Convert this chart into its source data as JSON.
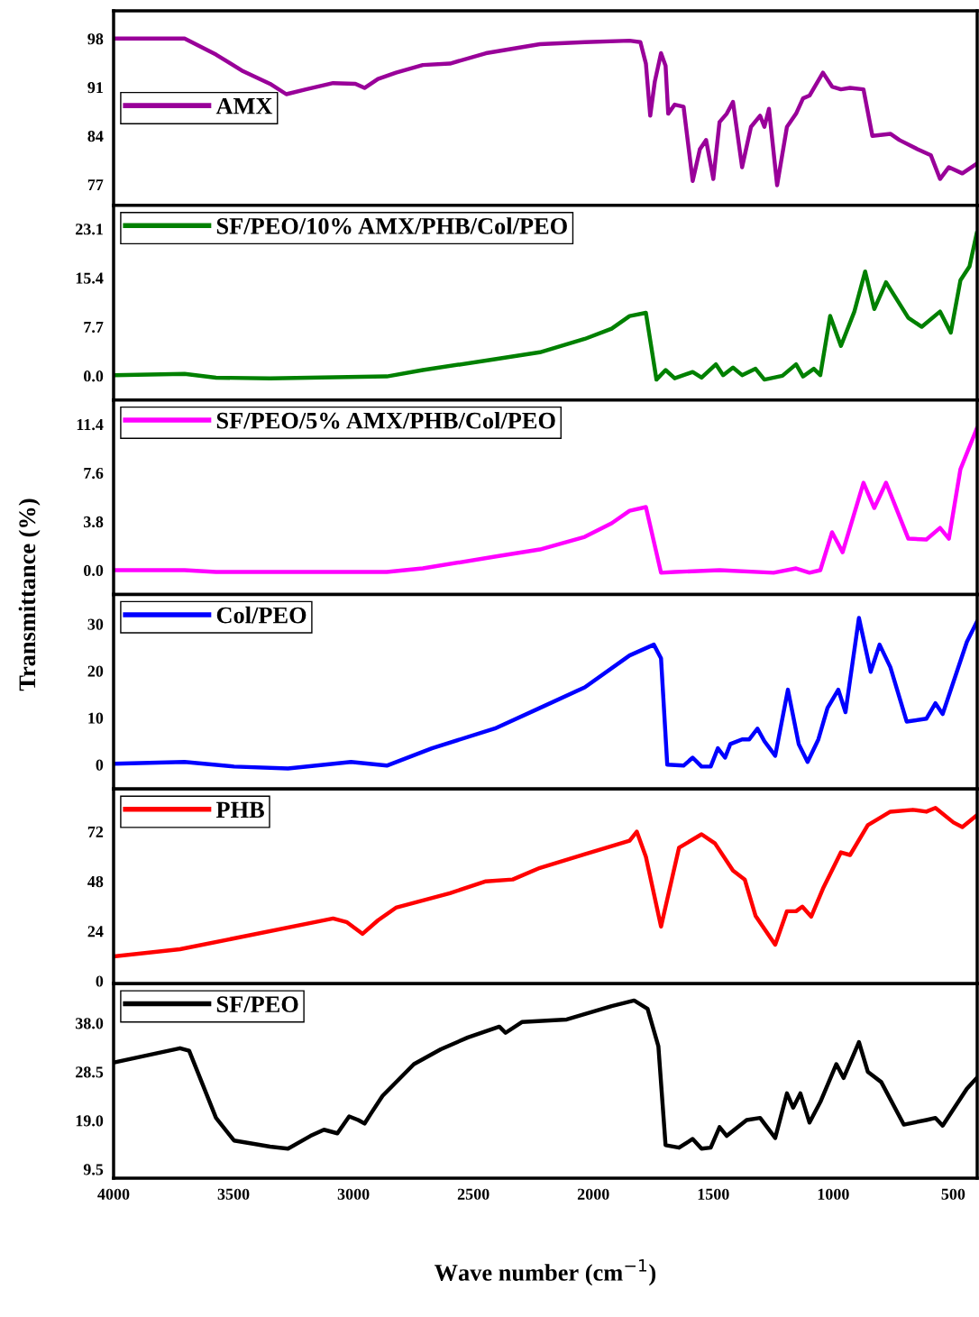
{
  "chart_data": [
    {
      "type": "line",
      "series": [
        {
          "name": "AMX",
          "color": "#990099",
          "x": [
            4000,
            3704,
            3573,
            3460,
            3348,
            3280,
            3198,
            3085,
            2992,
            2954,
            2898,
            2823,
            2711,
            2598,
            2448,
            2223,
            2036,
            1849,
            1804,
            1781,
            1763,
            1744,
            1718,
            1699,
            1688,
            1661,
            1624,
            1586,
            1556,
            1530,
            1500,
            1474,
            1444,
            1418,
            1380,
            1343,
            1305,
            1287,
            1268,
            1234,
            1193,
            1155,
            1126,
            1099,
            1043,
            1005,
            968,
            930,
            874,
            837,
            762,
            724,
            649,
            593,
            555,
            518,
            462,
            406
          ],
          "values": [
            98,
            98,
            95.7,
            93.3,
            91.5,
            90.0,
            90.7,
            91.6,
            91.5,
            90.9,
            92.2,
            93.1,
            94.2,
            94.4,
            95.9,
            97.2,
            97.5,
            97.7,
            97.5,
            94.4,
            86.9,
            91.8,
            95.9,
            94.1,
            87.2,
            88.5,
            88.2,
            77.5,
            82.1,
            83.4,
            77.8,
            86.0,
            87.2,
            88.9,
            79.5,
            85.3,
            86.9,
            85.3,
            87.9,
            76.9,
            85.3,
            87.2,
            89.4,
            89.8,
            93.1,
            91.1,
            90.7,
            90.9,
            90.7,
            84.0,
            84.3,
            83.4,
            82.1,
            81.2,
            77.8,
            79.5,
            78.6,
            79.9
          ]
        }
      ],
      "xlim": [
        4000,
        400
      ],
      "xticks": [
        4000,
        3500,
        3000,
        2500,
        2000,
        1500,
        1000,
        500
      ],
      "ylim": [
        74,
        102
      ],
      "yticks": [
        77,
        84,
        91,
        98
      ],
      "legend": "left",
      "tick_labels": "y",
      "grid": false
    },
    {
      "type": "line",
      "series": [
        {
          "name": "SF/PEO/10% AMX/PHB/Col/PEO",
          "color": "#008000",
          "x": [
            4000,
            3704,
            3573,
            3348,
            2861,
            2711,
            2411,
            2223,
            2036,
            1924,
            1849,
            1781,
            1737,
            1699,
            1661,
            1586,
            1549,
            1489,
            1459,
            1418,
            1380,
            1324,
            1287,
            1212,
            1155,
            1126,
            1081,
            1054,
            1013,
            968,
            912,
            867,
            829,
            780,
            687,
            631,
            555,
            510,
            470,
            432,
            402
          ],
          "values": [
            0.1,
            0.3,
            -0.3,
            -0.4,
            -0.1,
            0.9,
            2.6,
            3.7,
            5.8,
            7.4,
            9.4,
            9.9,
            -0.6,
            0.9,
            -0.4,
            0.6,
            -0.3,
            1.8,
            0.1,
            1.3,
            0.1,
            1.1,
            -0.6,
            0,
            1.8,
            -0.1,
            1.1,
            0.1,
            9.4,
            4.7,
            10.1,
            16.4,
            10.5,
            14.7,
            9.1,
            7.7,
            10.1,
            6.8,
            15.0,
            17.2,
            22.4
          ]
        }
      ],
      "xlim": [
        4000,
        400
      ],
      "xticks": [
        4000,
        3500,
        3000,
        2500,
        2000,
        1500,
        1000,
        500
      ],
      "ylim": [
        -3.8,
        26.8
      ],
      "yticks": [
        {
          "value": 0,
          "label": "0.0"
        },
        7.7,
        15.4,
        23.1
      ],
      "legend": "top left",
      "tick_labels": "y",
      "grid": false
    },
    {
      "type": "line",
      "ylabel": "Transmittance (%)",
      "series": [
        {
          "name": "SF/PEO/5% AMX/PHB/Col/PEO",
          "color": "#ff00ff",
          "x": [
            4000,
            3704,
            3573,
            2861,
            2711,
            2411,
            2223,
            2036,
            1924,
            1849,
            1781,
            1718,
            1661,
            1474,
            1249,
            1155,
            1099,
            1054,
            1005,
            961,
            874,
            829,
            780,
            687,
            612,
            555,
            518,
            470,
            402
          ],
          "values": [
            0,
            0,
            -0.14,
            -0.14,
            0.14,
            1.06,
            1.62,
            2.6,
            3.66,
            4.64,
            4.93,
            -0.2,
            -0.14,
            0,
            -0.2,
            0.14,
            -0.2,
            0,
            2.96,
            1.4,
            6.83,
            4.86,
            6.83,
            2.46,
            2.4,
            3.3,
            2.46,
            7.88,
            11.05
          ]
        }
      ],
      "xlim": [
        4000,
        400
      ],
      "xticks": [
        4000,
        3500,
        3000,
        2500,
        2000,
        1500,
        1000,
        500
      ],
      "ylim": [
        -1.9,
        13.3
      ],
      "yticks": [
        {
          "value": 0,
          "label": "0.0"
        },
        3.8,
        7.6,
        11.4
      ],
      "legend": "top left",
      "tick_labels": "y",
      "grid": false
    },
    {
      "type": "line",
      "series": [
        {
          "name": "Col/PEO",
          "color": "#0000ff",
          "x": [
            4000,
            3704,
            3498,
            3273,
            3010,
            2861,
            2673,
            2411,
            2223,
            2036,
            1849,
            1748,
            1718,
            1692,
            1624,
            1586,
            1549,
            1511,
            1481,
            1451,
            1429,
            1380,
            1350,
            1316,
            1287,
            1242,
            1189,
            1144,
            1107,
            1062,
            1024,
            979,
            949,
            893,
            844,
            807,
            762,
            694,
            612,
            574,
            544,
            443,
            402
          ],
          "values": [
            0.2,
            0.6,
            -0.4,
            -0.8,
            0.6,
            -0.2,
            3.5,
            7.7,
            12.1,
            16.5,
            23.3,
            25.6,
            22.7,
            0,
            -0.2,
            1.5,
            -0.4,
            -0.4,
            3.5,
            1.5,
            4.4,
            5.4,
            5.4,
            7.7,
            5.0,
            1.9,
            16.0,
            4.4,
            0.6,
            5.4,
            12.1,
            16.0,
            11.2,
            31.3,
            19.8,
            25.6,
            20.8,
            9.2,
            9.8,
            13.1,
            10.8,
            26.2,
            30.4
          ]
        }
      ],
      "xlim": [
        4000,
        400
      ],
      "xticks": [
        4000,
        3500,
        3000,
        2500,
        2000,
        1500,
        1000,
        500
      ],
      "ylim": [
        -5.2,
        36.3
      ],
      "yticks": [
        0,
        10,
        20,
        30
      ],
      "legend": "top left",
      "tick_labels": "y",
      "grid": false
    },
    {
      "type": "line",
      "series": [
        {
          "name": "PHB",
          "color": "#ff0000",
          "x": [
            4000,
            3723,
            3498,
            3085,
            3029,
            2962,
            2898,
            2823,
            2598,
            2448,
            2336,
            2223,
            2036,
            1849,
            1819,
            1781,
            1718,
            1643,
            1549,
            1493,
            1418,
            1369,
            1324,
            1242,
            1193,
            1155,
            1129,
            1092,
            1043,
            968,
            930,
            856,
            762,
            668,
            612,
            574,
            499,
            462,
            406
          ],
          "values": [
            11.8,
            15.3,
            20.5,
            30.1,
            28.4,
            22.7,
            29.2,
            35.3,
            42.3,
            48.0,
            48.9,
            54.5,
            61.1,
            67.6,
            72.0,
            59.8,
            26.2,
            64.2,
            70.7,
            66.3,
            53.2,
            48.9,
            31.4,
            17.5,
            33.6,
            33.6,
            35.8,
            31.0,
            44.5,
            62.0,
            60.7,
            75.1,
            81.6,
            82.5,
            81.6,
            83.4,
            76.4,
            74.2,
            79.4
          ]
        }
      ],
      "xlim": [
        4000,
        400
      ],
      "xticks": [
        4000,
        3500,
        3000,
        2500,
        2000,
        1500,
        1000,
        500
      ],
      "ylim": [
        -1.3,
        92.5
      ],
      "yticks": [
        0,
        24,
        48,
        72
      ],
      "legend": "top left",
      "tick_labels": "y",
      "grid": false
    },
    {
      "type": "line",
      "xlabel": "Wave number (cm$^{−1}$)",
      "series": [
        {
          "name": "SF/PEO",
          "color": "#000000",
          "x": [
            4000,
            3723,
            3685,
            3573,
            3498,
            3348,
            3273,
            3179,
            3123,
            3067,
            3018,
            2980,
            2954,
            2928,
            2879,
            2748,
            2636,
            2523,
            2392,
            2366,
            2298,
            2111,
            1924,
            1830,
            1774,
            1729,
            1699,
            1643,
            1586,
            1549,
            1511,
            1474,
            1444,
            1361,
            1305,
            1242,
            1193,
            1167,
            1137,
            1099,
            1054,
            987,
            957,
            893,
            856,
            800,
            706,
            612,
            574,
            544,
            443,
            402
          ],
          "values": [
            30.3,
            33.1,
            32.6,
            19.5,
            15.1,
            13.9,
            13.5,
            16.0,
            17.2,
            16.5,
            19.8,
            19.1,
            18.4,
            20.3,
            23.8,
            30.0,
            32.9,
            35.2,
            37.3,
            36.1,
            38.2,
            38.7,
            41.3,
            42.4,
            40.8,
            33.5,
            14.2,
            13.7,
            15.4,
            13.5,
            13.7,
            17.7,
            16.0,
            19.1,
            19.5,
            15.6,
            24.3,
            21.5,
            24.3,
            18.6,
            22.6,
            30.0,
            27.3,
            34.3,
            28.5,
            26.5,
            18.2,
            19.1,
            19.5,
            18.0,
            25.2,
            27.3
          ]
        }
      ],
      "xlim": [
        4000,
        400
      ],
      "xticks": [
        4000,
        3500,
        3000,
        2500,
        2000,
        1500,
        1000,
        500
      ],
      "ylim": [
        7.75,
        45.7
      ],
      "yticks": [
        {
          "value": 9.5,
          "label": "9.5"
        },
        {
          "value": 19,
          "label": "19.0"
        },
        {
          "value": 28.5,
          "label": "28.5"
        },
        {
          "value": 38,
          "label": "38.0"
        }
      ],
      "legend": "top left",
      "grid": false
    }
  ]
}
